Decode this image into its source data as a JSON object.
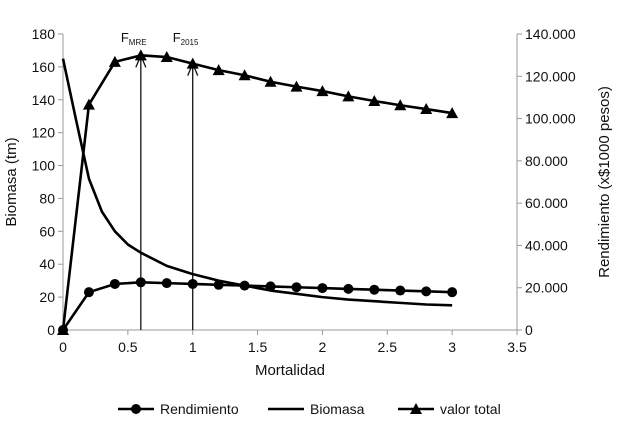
{
  "chart_data": {
    "type": "line",
    "title": "",
    "xlabel": "Mortalidad",
    "ylabel": "Biomasa  (tm)",
    "y2label": "Rendimiento  (x$1000 pesos)",
    "xlim": [
      0,
      3.5
    ],
    "ylim": [
      0,
      180
    ],
    "y2lim": [
      0,
      140000
    ],
    "xticks": [
      "0",
      "0.5",
      "1",
      "1.5",
      "2",
      "2.5",
      "3",
      "3.5"
    ],
    "yticks": [
      "0",
      "20",
      "40",
      "60",
      "80",
      "100",
      "120",
      "140",
      "160",
      "180"
    ],
    "y2ticks": [
      "0",
      "20.000",
      "40.000",
      "60.000",
      "80.000",
      "100.000",
      "120.000",
      "140.000"
    ],
    "grid": false,
    "legend_position": "bottom",
    "series": [
      {
        "name": "Rendimiento",
        "axis": "left",
        "marker": "circle",
        "x": [
          0,
          0.2,
          0.4,
          0.6,
          0.8,
          1.0,
          1.2,
          1.4,
          1.6,
          1.8,
          2.0,
          2.2,
          2.4,
          2.6,
          2.8,
          3.0
        ],
        "values": [
          0,
          23,
          28,
          29,
          28.5,
          28,
          27.5,
          27,
          26.5,
          26,
          25.5,
          25,
          24.5,
          24,
          23.5,
          23
        ]
      },
      {
        "name": "Biomasa",
        "axis": "left",
        "marker": "none",
        "x": [
          0,
          0.1,
          0.2,
          0.3,
          0.4,
          0.5,
          0.6,
          0.8,
          1.0,
          1.2,
          1.4,
          1.6,
          1.8,
          2.0,
          2.2,
          2.4,
          2.6,
          2.8,
          3.0
        ],
        "values": [
          165,
          128,
          92,
          72,
          60,
          52,
          47,
          39,
          34,
          30,
          27,
          24,
          22,
          20,
          18.5,
          17.5,
          16.5,
          15.5,
          15
        ]
      },
      {
        "name": "valor total",
        "axis": "right",
        "marker": "triangle",
        "x": [
          0,
          0.2,
          0.4,
          0.6,
          0.8,
          1.0,
          1.2,
          1.4,
          1.6,
          1.8,
          2.0,
          2.2,
          2.4,
          2.6,
          2.8,
          3.0
        ],
        "values": [
          0,
          106600,
          126800,
          129900,
          129100,
          126000,
          122900,
          120500,
          117400,
          115100,
          113000,
          110500,
          108300,
          106300,
          104500,
          102600
        ]
      }
    ],
    "annotations": [
      {
        "label": "F",
        "sub": "MRE",
        "x": 0.6
      },
      {
        "label": "F",
        "sub": "2015",
        "x": 1.0
      }
    ]
  }
}
